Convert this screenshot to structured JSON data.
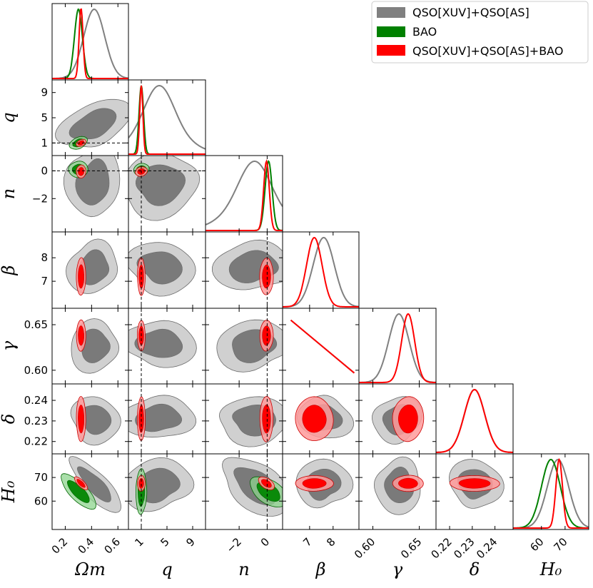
{
  "chart_data": {
    "type": "corner",
    "parameters": [
      {
        "key": "om",
        "label": "Ωm",
        "range": [
          0.1,
          0.68
        ],
        "ticks": [
          "0.2",
          "0.4",
          "0.6"
        ],
        "tick_values": [
          0.2,
          0.4,
          0.6
        ]
      },
      {
        "key": "q",
        "label": "q",
        "range": [
          -1,
          11
        ],
        "ticks": [
          "1",
          "5",
          "9"
        ],
        "tick_values": [
          1,
          5,
          9
        ]
      },
      {
        "key": "n",
        "label": "n",
        "range": [
          -4.4,
          1.1
        ],
        "ticks": [
          "−2",
          "0"
        ],
        "tick_values": [
          -2,
          0
        ]
      },
      {
        "key": "beta",
        "label": "β",
        "range": [
          5.85,
          9.1
        ],
        "ticks": [
          "7",
          "8"
        ],
        "tick_values": [
          7,
          8
        ]
      },
      {
        "key": "gamma",
        "label": "γ",
        "range": [
          0.585,
          0.668
        ],
        "ticks": [
          "0.60",
          "0.65"
        ],
        "tick_values": [
          0.6,
          0.65
        ]
      },
      {
        "key": "delta",
        "label": "δ",
        "range": [
          0.214,
          0.248
        ],
        "ticks": [
          "0.22",
          "0.23",
          "0.24"
        ],
        "tick_values": [
          0.22,
          0.23,
          0.24
        ]
      },
      {
        "key": "h0",
        "label": "H₀",
        "range": [
          48,
          80
        ],
        "ticks": [
          "60",
          "70"
        ],
        "tick_values": [
          60,
          70
        ]
      }
    ],
    "series": [
      {
        "name": "QSO[XUV]+QSO[AS]",
        "color": "#808080",
        "mean": {
          "om": 0.42,
          "q": 3.8,
          "n": -0.9,
          "beta": 7.6,
          "gamma": 0.628,
          "delta": 0.231,
          "h0": 67
        },
        "sigma": {
          "om": 0.08,
          "q": 2.2,
          "n": 1.1,
          "beta": 0.45,
          "gamma": 0.011,
          "delta": 0.0045,
          "h0": 4.5
        }
      },
      {
        "name": "BAO",
        "color": "#008000",
        "mean": {
          "om": 0.3,
          "q": 1.0,
          "n": 0.1,
          "h0": 64
        },
        "sigma": {
          "om": 0.03,
          "q": 0.35,
          "n": 0.25,
          "h0": 4.0
        }
      },
      {
        "name": "QSO[XUV]+QSO[AS]+BAO",
        "color": "#ff0000",
        "mean": {
          "om": 0.32,
          "q": 1.0,
          "n": -0.05,
          "beta": 7.2,
          "gamma": 0.638,
          "delta": 0.231,
          "h0": 67.5
        },
        "sigma": {
          "om": 0.015,
          "q": 0.25,
          "n": 0.2,
          "beta": 0.33,
          "gamma": 0.007,
          "delta": 0.0045,
          "h0": 1.4
        }
      }
    ],
    "reference_lines": {
      "q": 1,
      "n": 0
    },
    "legend": {
      "position": "top-right"
    },
    "grid": false
  }
}
